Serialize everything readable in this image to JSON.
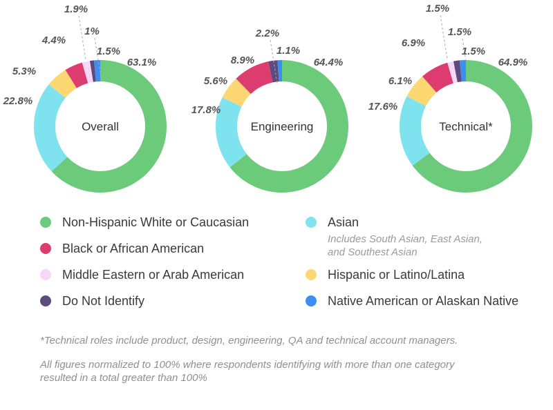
{
  "chart_data": {
    "type": "pie",
    "categories": [
      "Non-Hispanic White or Caucasian",
      "Asian",
      "Hispanic or Latino/Latina",
      "Black or African American",
      "Middle Eastern or Arab American",
      "Do Not Identify",
      "Native American or Alaskan Native"
    ],
    "colors": {
      "Non-Hispanic White or Caucasian": "#6ccb7b",
      "Asian": "#7fe3ef",
      "Hispanic or Latino/Latina": "#fcd772",
      "Black or African American": "#dc3d6e",
      "Middle Eastern or Arab American": "#f6d8f6",
      "Do Not Identify": "#5e4b7d",
      "Native American or Alaskan Native": "#3c8ef0"
    },
    "charts": [
      {
        "title": "Overall",
        "slices": [
          {
            "category": "Non-Hispanic White or Caucasian",
            "value": 63.1,
            "label": "63.1%"
          },
          {
            "category": "Asian",
            "value": 22.8,
            "label": "22.8%"
          },
          {
            "category": "Hispanic or Latino/Latina",
            "value": 5.3,
            "label": "5.3%"
          },
          {
            "category": "Black or African American",
            "value": 4.4,
            "label": "4.4%"
          },
          {
            "category": "Middle Eastern or Arab American",
            "value": 1.9,
            "label": "1.9%"
          },
          {
            "category": "Do Not Identify",
            "value": 1,
            "label": "1%"
          },
          {
            "category": "Native American or Alaskan Native",
            "value": 1.5,
            "label": "1.5%"
          }
        ]
      },
      {
        "title": "Engineering",
        "slices": [
          {
            "category": "Non-Hispanic White or Caucasian",
            "value": 64.4,
            "label": "64.4%"
          },
          {
            "category": "Asian",
            "value": 17.8,
            "label": "17.8%"
          },
          {
            "category": "Hispanic or Latino/Latina",
            "value": 5.6,
            "label": "5.6%"
          },
          {
            "category": "Black or African American",
            "value": 8.9,
            "label": "8.9%"
          },
          {
            "category": "Middle Eastern or Arab American",
            "value": 0,
            "label": ""
          },
          {
            "category": "Do Not Identify",
            "value": 2.2,
            "label": "2.2%"
          },
          {
            "category": "Native American or Alaskan Native",
            "value": 1.1,
            "label": "1.1%"
          }
        ]
      },
      {
        "title": "Technical*",
        "slices": [
          {
            "category": "Non-Hispanic White or Caucasian",
            "value": 64.9,
            "label": "64.9%"
          },
          {
            "category": "Asian",
            "value": 17.6,
            "label": "17.6%"
          },
          {
            "category": "Hispanic or Latino/Latina",
            "value": 6.1,
            "label": "6.1%"
          },
          {
            "category": "Black or African American",
            "value": 6.9,
            "label": "6.9%"
          },
          {
            "category": "Middle Eastern or Arab American",
            "value": 1.5,
            "label": "1.5%"
          },
          {
            "category": "Do Not Identify",
            "value": 1.5,
            "label": "1.5%"
          },
          {
            "category": "Native American or Alaskan Native",
            "value": 1.5,
            "label": "1.5%"
          }
        ]
      }
    ]
  },
  "legend": {
    "items": [
      {
        "label": "Non-Hispanic White or Caucasian",
        "color": "#6ccb7b"
      },
      {
        "label": "Asian",
        "color": "#7fe3ef",
        "note_lines": [
          "Includes South Asian, East Asian,",
          "and Southest Asian"
        ]
      },
      {
        "label": "Black or African American",
        "color": "#dc3d6e"
      },
      {
        "label": "Middle Eastern or Arab American",
        "color": "#f6d8f6"
      },
      {
        "label": "Hispanic or Latino/Latina",
        "color": "#fcd772"
      },
      {
        "label": "Do Not Identify",
        "color": "#5e4b7d"
      },
      {
        "label": "Native American or Alaskan Native",
        "color": "#3c8ef0"
      }
    ]
  },
  "footnotes": {
    "technical_note": "*Technical roles include product, design, engineering, QA and technical account managers.",
    "normalization_line1": "All figures normalized to 100% where respondents identifying with more than one category",
    "normalization_line2": "resulted in a total greater than 100%"
  }
}
